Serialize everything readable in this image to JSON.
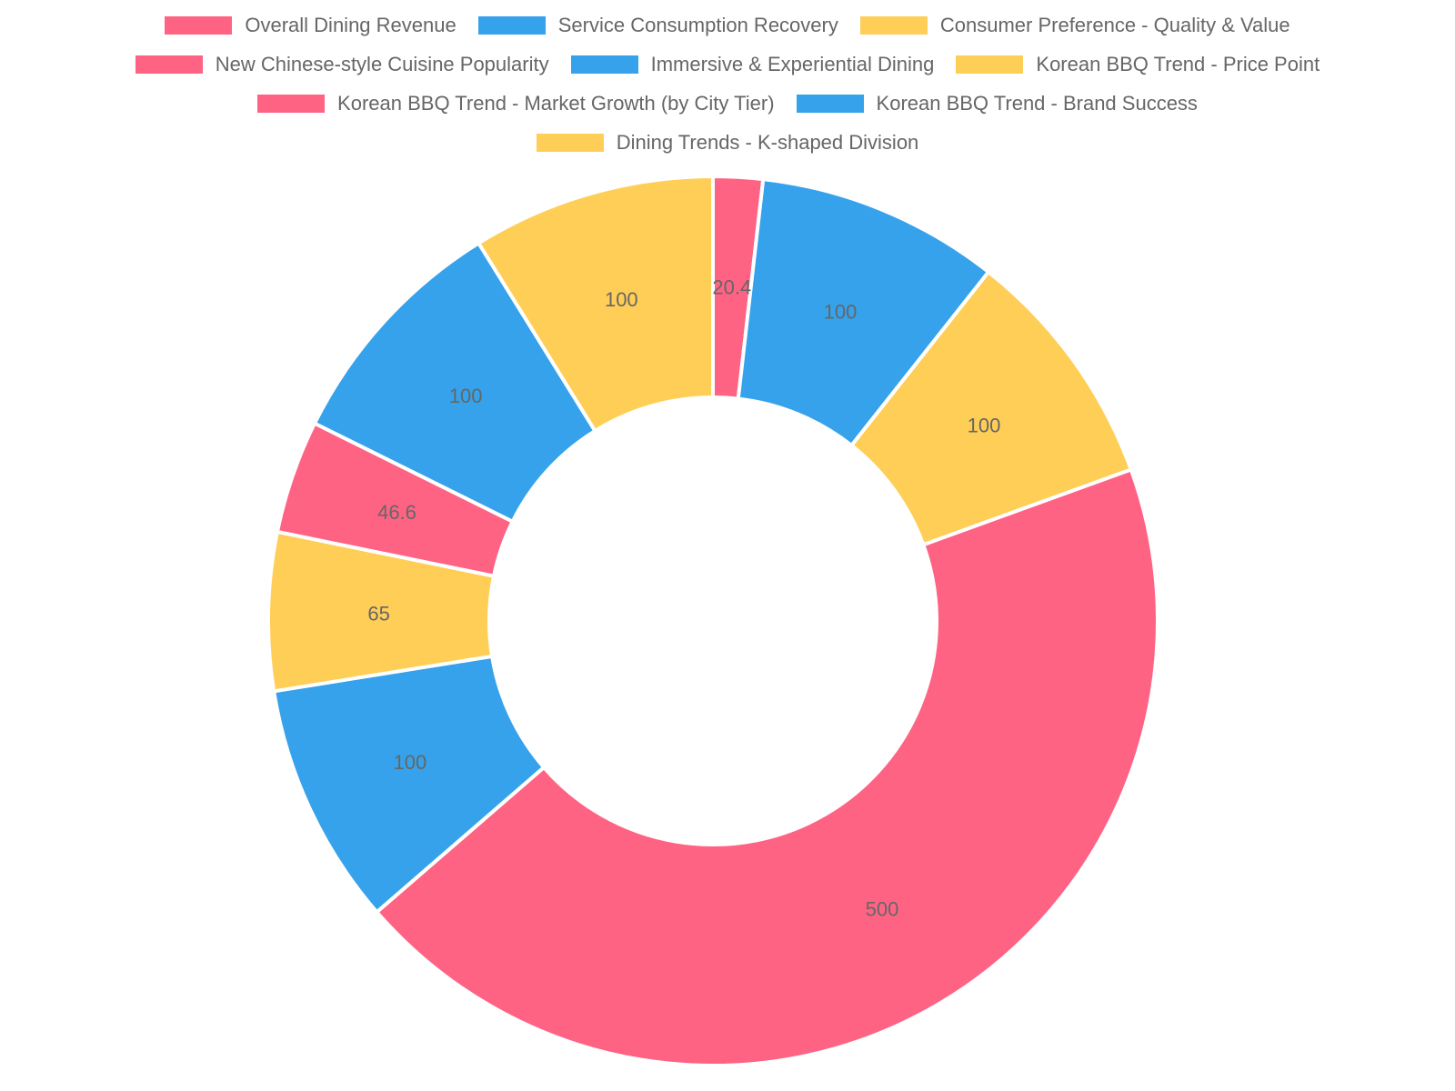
{
  "chart_data": {
    "type": "doughnut",
    "title": "",
    "categories": [
      "Overall Dining Revenue",
      "Service Consumption Recovery",
      "Consumer Preference - Quality & Value",
      "New Chinese-style Cuisine Popularity",
      "Immersive & Experiential Dining",
      "Korean BBQ Trend - Price Point",
      "Korean BBQ Trend - Market Growth (by City Tier)",
      "Korean BBQ Trend - Brand Success",
      "Dining Trends - K-shaped Division"
    ],
    "values": [
      20.4,
      100,
      100,
      500,
      100,
      65,
      46.6,
      100,
      100
    ],
    "value_labels": [
      "20.4",
      "100",
      "100",
      "500",
      "100",
      "65",
      "46.6",
      "100",
      "100"
    ],
    "colors": [
      "#ff6384",
      "#36a2eb",
      "#ffce56",
      "#ff6384",
      "#36a2eb",
      "#ffce56",
      "#ff6384",
      "#36a2eb",
      "#ffce56"
    ],
    "legend_position": "top",
    "start_angle": "top, clockwise"
  },
  "legend_rows": [
    [
      0,
      1,
      2
    ],
    [
      3,
      4,
      5
    ],
    [
      6,
      7
    ],
    [
      8
    ]
  ]
}
